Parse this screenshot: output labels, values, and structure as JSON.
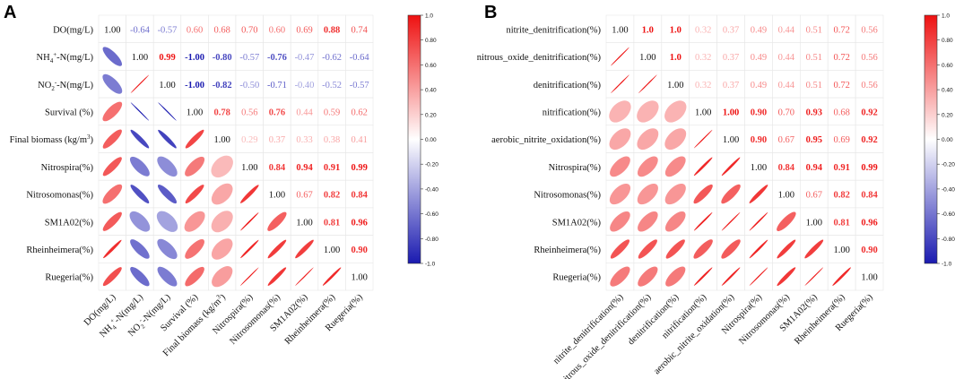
{
  "chart_data": [
    {
      "type": "heatmap",
      "panel": "A",
      "style": "correlation ellipse (lower) / coefficient text (upper)",
      "row_labels": [
        {
          "main": "DO(mg/L)"
        },
        {
          "main": "NH",
          "sub": "4",
          "sup": "+",
          "tail": "-N(mg/L)"
        },
        {
          "main": "NO",
          "sub": "2",
          "sup": "-",
          "tail": "-N(mg/L)"
        },
        {
          "main": "Survival (%)"
        },
        {
          "main": "Final biomass (kg/m",
          "sup": "3",
          "tail": ")"
        },
        {
          "main": "Nitrospira(%)"
        },
        {
          "main": "Nitrosomonas(%)"
        },
        {
          "main": "SM1A02(%)"
        },
        {
          "main": "Rheinheimera(%)"
        },
        {
          "main": "Ruegeria(%)"
        }
      ],
      "col_labels": [
        {
          "main": "DO(mg/L)"
        },
        {
          "main": "NH",
          "sub": "4",
          "sup": "+",
          "tail": "-N(mg/L)"
        },
        {
          "main": "NO",
          "sub": "2",
          "sup": "-",
          "tail": "-N(mg/L)"
        },
        {
          "main": "Survival (%)"
        },
        {
          "main": "Final biomass (kg/m",
          "sup": "3",
          "tail": ")"
        },
        {
          "main": "Nitrospira(%)"
        },
        {
          "main": "Nitrosomonas(%)"
        },
        {
          "main": "SM1A02(%)"
        },
        {
          "main": "Rheinheimera(%)"
        },
        {
          "main": "Ruegeria(%)"
        }
      ],
      "matrix": [
        [
          1.0,
          -0.64,
          -0.57,
          0.6,
          0.68,
          0.7,
          0.6,
          0.69,
          0.88,
          0.74
        ],
        [
          -0.64,
          1.0,
          0.99,
          -1.0,
          -0.8,
          -0.57,
          -0.76,
          -0.47,
          -0.62,
          -0.64
        ],
        [
          -0.57,
          0.99,
          1.0,
          -1.0,
          -0.82,
          -0.5,
          -0.71,
          -0.4,
          -0.52,
          -0.57
        ],
        [
          0.6,
          -1.0,
          -1.0,
          1.0,
          0.78,
          0.56,
          0.76,
          0.44,
          0.59,
          0.62
        ],
        [
          0.68,
          -0.8,
          -0.82,
          0.78,
          1.0,
          0.29,
          0.37,
          0.33,
          0.38,
          0.41
        ],
        [
          0.7,
          -0.57,
          -0.5,
          0.56,
          0.29,
          1.0,
          0.84,
          0.94,
          0.91,
          0.99
        ],
        [
          0.6,
          -0.76,
          -0.71,
          0.76,
          0.37,
          0.84,
          1.0,
          0.67,
          0.82,
          0.84
        ],
        [
          0.69,
          -0.47,
          -0.4,
          0.44,
          0.33,
          0.94,
          0.67,
          1.0,
          0.81,
          0.96
        ],
        [
          0.88,
          -0.62,
          -0.52,
          0.59,
          0.38,
          0.91,
          0.82,
          0.81,
          1.0,
          0.9
        ],
        [
          0.74,
          -0.64,
          -0.57,
          0.62,
          0.41,
          0.99,
          0.84,
          0.96,
          0.9,
          1.0
        ]
      ],
      "value_labels": [
        [
          "1.00",
          "-0.64",
          "-0.57",
          "0.60",
          "0.68",
          "0.70",
          "0.60",
          "0.69",
          "0.88",
          "0.74"
        ],
        [
          "",
          "1.00",
          "0.99",
          "-1.00",
          "-0.80",
          "-0.57",
          "-0.76",
          "-0.47",
          "-0.62",
          "-0.64"
        ],
        [
          "",
          "",
          "1.00",
          "-1.00",
          "-0.82",
          "-0.50",
          "-0.71",
          "-0.40",
          "-0.52",
          "-0.57"
        ],
        [
          "",
          "",
          "",
          "1.00",
          "0.78",
          "0.56",
          "0.76",
          "0.44",
          "0.59",
          "0.62"
        ],
        [
          "",
          "",
          "",
          "",
          "1.00",
          "0.29",
          "0.37",
          "0.33",
          "0.38",
          "0.41"
        ],
        [
          "",
          "",
          "",
          "",
          "",
          "1.00",
          "0.84",
          "0.94",
          "0.91",
          "0.99"
        ],
        [
          "",
          "",
          "",
          "",
          "",
          "",
          "1.00",
          "0.67",
          "0.82",
          "0.84"
        ],
        [
          "",
          "",
          "",
          "",
          "",
          "",
          "",
          "1.00",
          "0.81",
          "0.96"
        ],
        [
          "",
          "",
          "",
          "",
          "",
          "",
          "",
          "",
          "1.00",
          "0.90"
        ],
        [
          "",
          "",
          "",
          "",
          "",
          "",
          "",
          "",
          "",
          "1.00"
        ]
      ],
      "colorbar": {
        "range": [
          -1.0,
          1.0
        ],
        "ticks": [
          "1.0",
          "0.80",
          "0.60",
          "0.40",
          "0.20",
          "0.00",
          "-0.20",
          "-0.40",
          "-0.60",
          "-0.80",
          "-1.0"
        ],
        "colors": {
          "negative": "#1a1ab0",
          "neutral": "#ffffff",
          "positive": "#ee1111"
        }
      }
    },
    {
      "type": "heatmap",
      "panel": "B",
      "style": "correlation ellipse (lower) / coefficient text (upper)",
      "row_labels": [
        {
          "main": "nitrite_denitrification(%)"
        },
        {
          "main": "nitrous_oxide_denitrification(%)"
        },
        {
          "main": "denitrification(%)"
        },
        {
          "main": "nitrification(%)"
        },
        {
          "main": "aerobic_nitrite_oxidation(%)"
        },
        {
          "main": "Nitrospira(%)"
        },
        {
          "main": "Nitrosomonas(%)"
        },
        {
          "main": "SM1A02(%)"
        },
        {
          "main": "Rheinheimera(%)"
        },
        {
          "main": "Ruegeria(%)"
        }
      ],
      "col_labels": [
        {
          "main": "nitrite_denitrification(%)"
        },
        {
          "main": "nitrous_oxide_denitrification(%)"
        },
        {
          "main": "denitrification(%)"
        },
        {
          "main": "nitrification(%)"
        },
        {
          "main": "aerobic_nitrite_oxidation(%)"
        },
        {
          "main": "Nitrospira(%)"
        },
        {
          "main": "Nitrosomonas(%)"
        },
        {
          "main": "SM1A02(%)"
        },
        {
          "main": "Rheinheimera(%)"
        },
        {
          "main": "Ruegeria(%)"
        }
      ],
      "matrix": [
        [
          1.0,
          1.0,
          1.0,
          0.32,
          0.37,
          0.49,
          0.44,
          0.51,
          0.72,
          0.56
        ],
        [
          1.0,
          1.0,
          1.0,
          0.32,
          0.37,
          0.49,
          0.44,
          0.51,
          0.72,
          0.56
        ],
        [
          1.0,
          1.0,
          1.0,
          0.32,
          0.37,
          0.49,
          0.44,
          0.51,
          0.72,
          0.56
        ],
        [
          0.32,
          0.32,
          0.32,
          1.0,
          1.0,
          0.9,
          0.7,
          0.93,
          0.68,
          0.92
        ],
        [
          0.37,
          0.37,
          0.37,
          1.0,
          1.0,
          0.9,
          0.67,
          0.95,
          0.69,
          0.92
        ],
        [
          0.49,
          0.49,
          0.49,
          0.9,
          0.9,
          1.0,
          0.84,
          0.94,
          0.91,
          0.99
        ],
        [
          0.44,
          0.44,
          0.44,
          0.7,
          0.67,
          0.84,
          1.0,
          0.67,
          0.82,
          0.84
        ],
        [
          0.51,
          0.51,
          0.51,
          0.93,
          0.95,
          0.94,
          0.67,
          1.0,
          0.81,
          0.96
        ],
        [
          0.72,
          0.72,
          0.72,
          0.68,
          0.69,
          0.91,
          0.82,
          0.81,
          1.0,
          0.9
        ],
        [
          0.56,
          0.56,
          0.56,
          0.92,
          0.92,
          0.99,
          0.84,
          0.96,
          0.9,
          1.0
        ]
      ],
      "value_labels": [
        [
          "1.00",
          "1.0",
          "1.0",
          "0.32",
          "0.37",
          "0.49",
          "0.44",
          "0.51",
          "0.72",
          "0.56"
        ],
        [
          "",
          "1.00",
          "1.0",
          "0.32",
          "0.37",
          "0.49",
          "0.44",
          "0.51",
          "0.72",
          "0.56"
        ],
        [
          "",
          "",
          "1.00",
          "0.32",
          "0.37",
          "0.49",
          "0.44",
          "0.51",
          "0.72",
          "0.56"
        ],
        [
          "",
          "",
          "",
          "1.00",
          "1.00",
          "0.90",
          "0.70",
          "0.93",
          "0.68",
          "0.92"
        ],
        [
          "",
          "",
          "",
          "",
          "1.00",
          "0.90",
          "0.67",
          "0.95",
          "0.69",
          "0.92"
        ],
        [
          "",
          "",
          "",
          "",
          "",
          "1.00",
          "0.84",
          "0.94",
          "0.91",
          "0.99"
        ],
        [
          "",
          "",
          "",
          "",
          "",
          "",
          "1.00",
          "0.67",
          "0.82",
          "0.84"
        ],
        [
          "",
          "",
          "",
          "",
          "",
          "",
          "",
          "1.00",
          "0.81",
          "0.96"
        ],
        [
          "",
          "",
          "",
          "",
          "",
          "",
          "",
          "",
          "1.00",
          "0.90"
        ],
        [
          "",
          "",
          "",
          "",
          "",
          "",
          "",
          "",
          "",
          "1.00"
        ]
      ],
      "colorbar": {
        "range": [
          -1.0,
          1.0
        ],
        "ticks": [
          "1.0",
          "0.80",
          "0.60",
          "0.40",
          "0.20",
          "0.00",
          "-0.20",
          "-0.40",
          "-0.60",
          "-0.80",
          "-1.0"
        ],
        "colors": {
          "negative": "#1a1ab0",
          "neutral": "#ffffff",
          "positive": "#ee1111"
        }
      }
    }
  ]
}
